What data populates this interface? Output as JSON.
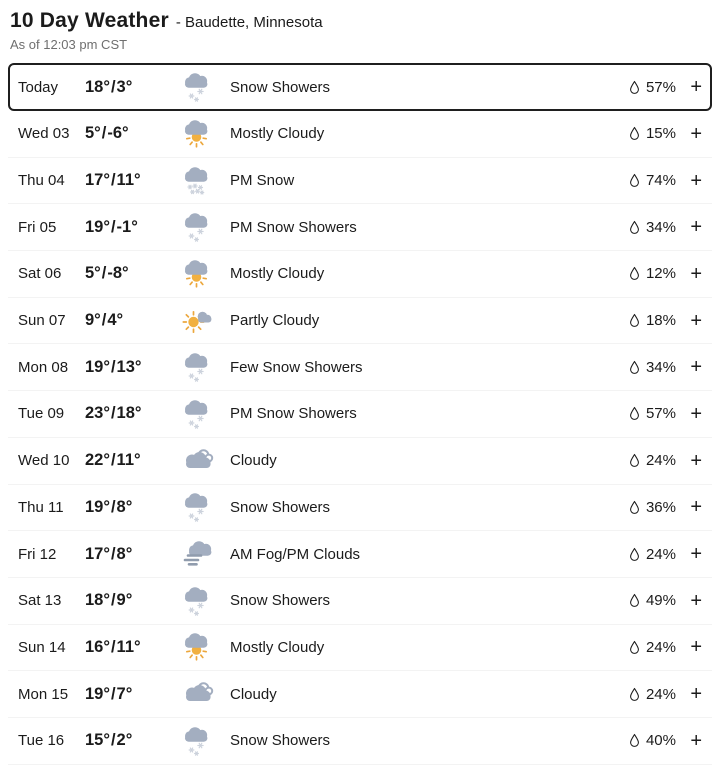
{
  "header": {
    "title": "10 Day Weather",
    "location": "- Baudette, Minnesota",
    "as_of": "As of 12:03 pm CST"
  },
  "colors": {
    "cloud": "#a3aec0",
    "cloud_outline": "#a3aec0",
    "snowflake": "#ccd2dc",
    "sun": "#f1b040",
    "sun_ray": "#eca73d",
    "fog_line": "#909cad",
    "text": "#1b1b1b",
    "muted": "#6f6f6f",
    "today_border": "#1f1f1f"
  },
  "row_controls": {
    "expand_label": "+",
    "temp_separator": "/",
    "precip_icon": "droplet-icon"
  },
  "rows": [
    {
      "day": "Today",
      "high": "18°",
      "low": "3°",
      "icon": "snow-showers",
      "phrase": "Snow Showers",
      "precip": "57%"
    },
    {
      "day": "Wed 03",
      "high": "5°",
      "low": "-6°",
      "icon": "mostly-cloudy",
      "phrase": "Mostly Cloudy",
      "precip": "15%"
    },
    {
      "day": "Thu 04",
      "high": "17°",
      "low": "11°",
      "icon": "pm-snow",
      "phrase": "PM Snow",
      "precip": "74%"
    },
    {
      "day": "Fri 05",
      "high": "19°",
      "low": "-1°",
      "icon": "snow-showers",
      "phrase": "PM Snow Showers",
      "precip": "34%"
    },
    {
      "day": "Sat 06",
      "high": "5°",
      "low": "-8°",
      "icon": "mostly-cloudy",
      "phrase": "Mostly Cloudy",
      "precip": "12%"
    },
    {
      "day": "Sun 07",
      "high": "9°",
      "low": "4°",
      "icon": "partly-cloudy",
      "phrase": "Partly Cloudy",
      "precip": "18%"
    },
    {
      "day": "Mon 08",
      "high": "19°",
      "low": "13°",
      "icon": "snow-showers",
      "phrase": "Few Snow Showers",
      "precip": "34%"
    },
    {
      "day": "Tue 09",
      "high": "23°",
      "low": "18°",
      "icon": "snow-showers",
      "phrase": "PM Snow Showers",
      "precip": "57%"
    },
    {
      "day": "Wed 10",
      "high": "22°",
      "low": "11°",
      "icon": "cloudy",
      "phrase": "Cloudy",
      "precip": "24%"
    },
    {
      "day": "Thu 11",
      "high": "19°",
      "low": "8°",
      "icon": "snow-showers",
      "phrase": "Snow Showers",
      "precip": "36%"
    },
    {
      "day": "Fri 12",
      "high": "17°",
      "low": "8°",
      "icon": "fog",
      "phrase": "AM Fog/PM Clouds",
      "precip": "24%"
    },
    {
      "day": "Sat 13",
      "high": "18°",
      "low": "9°",
      "icon": "snow-showers",
      "phrase": "Snow Showers",
      "precip": "49%"
    },
    {
      "day": "Sun 14",
      "high": "16°",
      "low": "11°",
      "icon": "mostly-cloudy",
      "phrase": "Mostly Cloudy",
      "precip": "24%"
    },
    {
      "day": "Mon 15",
      "high": "19°",
      "low": "7°",
      "icon": "cloudy",
      "phrase": "Cloudy",
      "precip": "24%"
    },
    {
      "day": "Tue 16",
      "high": "15°",
      "low": "2°",
      "icon": "snow-showers",
      "phrase": "Snow Showers",
      "precip": "40%"
    }
  ]
}
